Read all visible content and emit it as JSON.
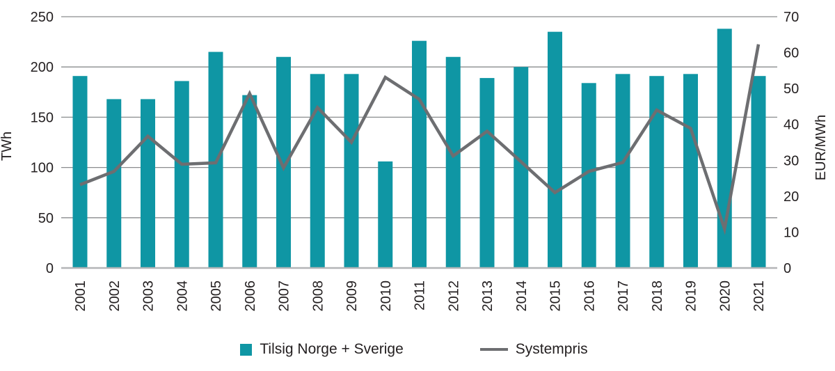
{
  "chart_data": {
    "type": "bar",
    "title": "",
    "categories": [
      "2001",
      "2002",
      "2003",
      "2004",
      "2005",
      "2006",
      "2007",
      "2008",
      "2009",
      "2010",
      "2011",
      "2012",
      "2013",
      "2014",
      "2015",
      "2016",
      "2017",
      "2018",
      "2019",
      "2020",
      "2021"
    ],
    "series": [
      {
        "name": "Tilsig Norge + Sverige",
        "type": "bar",
        "axis": "left",
        "unit": "TWh",
        "color": "#0f96a4",
        "values": [
          191,
          168,
          168,
          186,
          215,
          172,
          210,
          193,
          193,
          106,
          226,
          210,
          189,
          200,
          235,
          184,
          193,
          191,
          193,
          238,
          191
        ]
      },
      {
        "name": "Systempris",
        "type": "line",
        "axis": "right",
        "unit": "EUR/MWh",
        "color": "#6d6e71",
        "values": [
          23.2,
          26.9,
          36.7,
          28.9,
          29.3,
          48.6,
          27.9,
          44.7,
          35,
          53.1,
          47,
          31.2,
          38.1,
          29.6,
          21,
          26.9,
          29.4,
          44,
          38.9,
          10.9,
          62.3
        ]
      }
    ],
    "left_axis": {
      "label": "TWh",
      "min": 0,
      "max": 250,
      "step": 50,
      "ticks": [
        0,
        50,
        100,
        150,
        200,
        250
      ]
    },
    "right_axis": {
      "label": "EUR/MWh",
      "min": 0,
      "max": 70,
      "step": 10,
      "ticks": [
        0,
        10,
        20,
        30,
        40,
        50,
        60,
        70
      ]
    },
    "grid": true,
    "gridline_color": "#8a8c8e",
    "baseline_color": "#b3b5b7",
    "legend_position": "bottom"
  }
}
